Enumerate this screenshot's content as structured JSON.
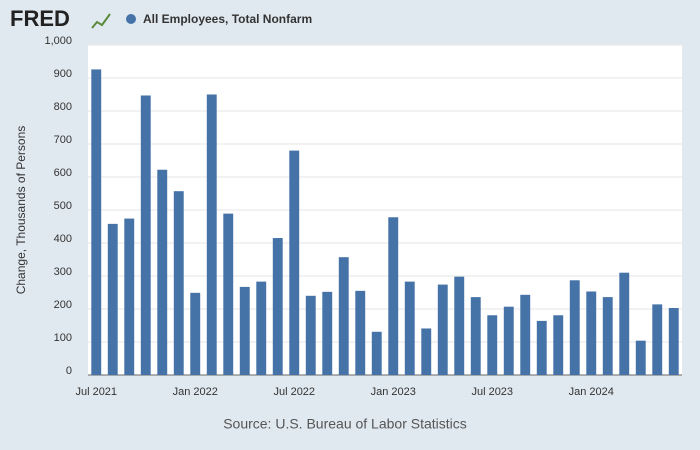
{
  "logo": "FRED",
  "chart_data": {
    "type": "bar",
    "ylabel": "Change, Thousands of Persons",
    "source": "Source: U.S. Bureau of Labor Statistics",
    "categories": [
      "Jul 2021",
      null,
      null,
      null,
      null,
      null,
      "Jan 2022",
      null,
      null,
      null,
      null,
      null,
      "Jul 2022",
      null,
      null,
      null,
      null,
      null,
      "Jan 2023",
      null,
      null,
      null,
      null,
      null,
      "Jul 2023",
      null,
      null,
      null,
      null,
      null,
      "Jan 2024",
      null,
      null,
      null,
      null,
      null
    ],
    "series": [
      {
        "name": "All Employees, Total Nonfarm",
        "color": "#4572a7",
        "values": [
          926,
          458,
          474,
          847,
          622,
          557,
          249,
          850,
          489,
          267,
          283,
          415,
          680,
          240,
          252,
          357,
          255,
          131,
          478,
          283,
          141,
          274,
          298,
          236,
          181,
          207,
          243,
          164,
          181,
          287,
          253,
          236,
          310,
          104,
          214,
          203
        ]
      }
    ],
    "ylim": [
      0,
      1000
    ],
    "yticks": [
      0,
      100,
      200,
      300,
      400,
      500,
      600,
      700,
      800,
      900,
      {
        "value": 1000,
        "label": "1,000"
      }
    ],
    "grid": true
  }
}
